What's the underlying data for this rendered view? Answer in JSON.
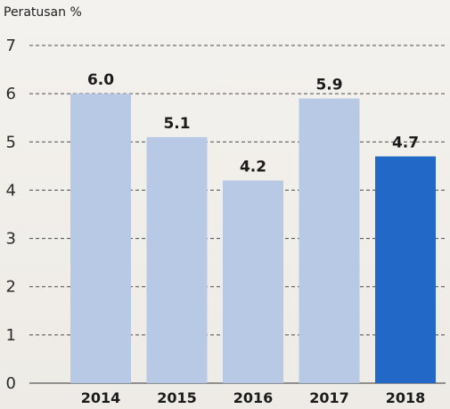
{
  "chart_data": {
    "type": "bar",
    "title": "",
    "ylabel": "Peratusan %",
    "xlabel": "",
    "categories": [
      "2014",
      "2015",
      "2016",
      "2017",
      "2018"
    ],
    "values": [
      6.0,
      5.1,
      4.2,
      5.9,
      4.7
    ],
    "value_labels": [
      "6.0",
      "5.1",
      "4.2",
      "5.9",
      "4.7"
    ],
    "yticks": [
      0,
      1,
      2,
      3,
      4,
      5,
      6,
      7
    ],
    "ylim": [
      0,
      7
    ],
    "grid": true,
    "highlight_index": 4,
    "colors": {
      "bar": "#b7c9e4",
      "highlight": "#2168c7",
      "grid": "#4a4a4a"
    }
  }
}
